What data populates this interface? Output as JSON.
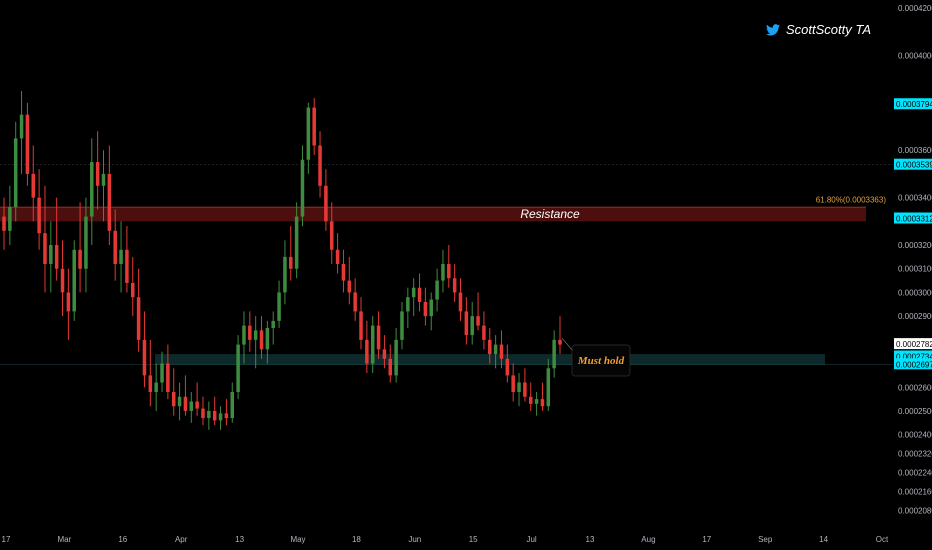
{
  "brand": {
    "name": "ScottScotty TA",
    "icon": "twitter-bird-icon",
    "color": "#1da1f2"
  },
  "colors": {
    "up": "#26a69a",
    "down": "#ef5350",
    "upBody": "#3d8c40",
    "downBody": "#e53935",
    "resistance": "#7a1a1a",
    "support": "#0d2a2a"
  },
  "chart_data": {
    "type": "candlestick",
    "title": "",
    "ylim": [
      0.000204,
      0.00042
    ],
    "y_ticks": [
      "0.0004200",
      "0.0004000",
      "0.0003600",
      "0.0003400",
      "0.0003200",
      "0.0003100",
      "0.0003000",
      "0.0002900",
      "0.0002600",
      "0.0002500",
      "0.0002400",
      "0.0002320",
      "0.0002240",
      "0.0002160",
      "0.0002080"
    ],
    "x_ticks": [
      "17",
      "Mar",
      "16",
      "Apr",
      "13",
      "May",
      "18",
      "Jun",
      "15",
      "Jul",
      "13",
      "Aug",
      "17",
      "Sep",
      "14",
      "Oct"
    ],
    "price_labels": [
      {
        "value": "0.0003794",
        "style": "cyan"
      },
      {
        "value": "0.0003539",
        "style": "cyan"
      },
      {
        "value": "0.0003312",
        "style": "cyan"
      },
      {
        "value": "0.0002782",
        "style": "white"
      },
      {
        "value": "0.0002734",
        "style": "cyan"
      },
      {
        "value": "0.0002697",
        "style": "cyan"
      }
    ],
    "fib_label": "61.80%(0.0003363)",
    "annotations": {
      "resistance": "Resistance",
      "support": "Must hold"
    },
    "resistance_zone": [
      0.00033,
      0.000336
    ],
    "support_zone": [
      0.0002695,
      0.000274
    ],
    "candles": [
      [
        0.000332,
        0.00034,
        0.000318,
        0.000326
      ],
      [
        0.000326,
        0.000345,
        0.00032,
        0.000336
      ],
      [
        0.000336,
        0.000372,
        0.00033,
        0.000365
      ],
      [
        0.000365,
        0.000385,
        0.00035,
        0.000375
      ],
      [
        0.000375,
        0.00038,
        0.000345,
        0.00035
      ],
      [
        0.00035,
        0.000362,
        0.00033,
        0.00034
      ],
      [
        0.00034,
        0.000352,
        0.000318,
        0.000325
      ],
      [
        0.000325,
        0.000345,
        0.0003,
        0.000312
      ],
      [
        0.000312,
        0.00033,
        0.0003,
        0.00032
      ],
      [
        0.00032,
        0.00034,
        0.000305,
        0.00031
      ],
      [
        0.00031,
        0.000322,
        0.00029,
        0.0003
      ],
      [
        0.0003,
        0.00031,
        0.00028,
        0.000292
      ],
      [
        0.000292,
        0.000322,
        0.000288,
        0.000318
      ],
      [
        0.000318,
        0.000338,
        0.0003,
        0.00031
      ],
      [
        0.00031,
        0.00034,
        0.0003,
        0.000332
      ],
      [
        0.000332,
        0.000365,
        0.00032,
        0.000355
      ],
      [
        0.000355,
        0.000368,
        0.000335,
        0.000345
      ],
      [
        0.000345,
        0.00036,
        0.00033,
        0.00035
      ],
      [
        0.00035,
        0.000362,
        0.00032,
        0.000326
      ],
      [
        0.000326,
        0.000335,
        0.000305,
        0.000312
      ],
      [
        0.000312,
        0.00033,
        0.0003,
        0.000318
      ],
      [
        0.000318,
        0.000328,
        0.0003,
        0.000304
      ],
      [
        0.000304,
        0.000315,
        0.00029,
        0.000298
      ],
      [
        0.000298,
        0.00031,
        0.000275,
        0.00028
      ],
      [
        0.00028,
        0.000292,
        0.00026,
        0.000265
      ],
      [
        0.000265,
        0.00028,
        0.000252,
        0.000258
      ],
      [
        0.000258,
        0.00027,
        0.00025,
        0.000262
      ],
      [
        0.000262,
        0.000275,
        0.000258,
        0.00027
      ],
      [
        0.00027,
        0.000278,
        0.000255,
        0.000258
      ],
      [
        0.000258,
        0.000268,
        0.000248,
        0.000252
      ],
      [
        0.000252,
        0.000262,
        0.000246,
        0.000256
      ],
      [
        0.000256,
        0.000265,
        0.000248,
        0.00025
      ],
      [
        0.00025,
        0.000258,
        0.000245,
        0.000254
      ],
      [
        0.000254,
        0.000262,
        0.000248,
        0.000251
      ],
      [
        0.000251,
        0.000256,
        0.000244,
        0.000247
      ],
      [
        0.000247,
        0.000254,
        0.000242,
        0.00025
      ],
      [
        0.00025,
        0.000256,
        0.000244,
        0.000246
      ],
      [
        0.000246,
        0.000252,
        0.000242,
        0.000249
      ],
      [
        0.000249,
        0.000255,
        0.000244,
        0.000247
      ],
      [
        0.000247,
        0.000262,
        0.000245,
        0.000258
      ],
      [
        0.000258,
        0.000282,
        0.000255,
        0.000278
      ],
      [
        0.000278,
        0.000292,
        0.00027,
        0.000286
      ],
      [
        0.000286,
        0.000292,
        0.000275,
        0.00028
      ],
      [
        0.00028,
        0.00029,
        0.000268,
        0.000284
      ],
      [
        0.000284,
        0.00029,
        0.000272,
        0.000276
      ],
      [
        0.000276,
        0.000288,
        0.00027,
        0.000285
      ],
      [
        0.000285,
        0.000292,
        0.000278,
        0.000288
      ],
      [
        0.000288,
        0.000305,
        0.000285,
        0.0003
      ],
      [
        0.0003,
        0.000322,
        0.000295,
        0.000315
      ],
      [
        0.000315,
        0.000328,
        0.000305,
        0.00031
      ],
      [
        0.00031,
        0.000338,
        0.000306,
        0.000332
      ],
      [
        0.000332,
        0.000362,
        0.000328,
        0.000356
      ],
      [
        0.000356,
        0.00038,
        0.00035,
        0.000378
      ],
      [
        0.000378,
        0.000382,
        0.000358,
        0.000362
      ],
      [
        0.000362,
        0.000368,
        0.00034,
        0.000345
      ],
      [
        0.000345,
        0.000352,
        0.000326,
        0.00033
      ],
      [
        0.00033,
        0.000338,
        0.000312,
        0.000318
      ],
      [
        0.000318,
        0.000325,
        0.000308,
        0.000312
      ],
      [
        0.000312,
        0.000318,
        0.0003,
        0.000305
      ],
      [
        0.000305,
        0.000315,
        0.000295,
        0.0003
      ],
      [
        0.0003,
        0.000306,
        0.000288,
        0.000292
      ],
      [
        0.000292,
        0.000298,
        0.000276,
        0.00028
      ],
      [
        0.00028,
        0.000288,
        0.000266,
        0.00027
      ],
      [
        0.00027,
        0.00029,
        0.000266,
        0.000286
      ],
      [
        0.000286,
        0.000292,
        0.000272,
        0.000276
      ],
      [
        0.000276,
        0.000282,
        0.000268,
        0.000272
      ],
      [
        0.000272,
        0.000278,
        0.000262,
        0.000265
      ],
      [
        0.000265,
        0.000285,
        0.000262,
        0.00028
      ],
      [
        0.00028,
        0.000296,
        0.000276,
        0.000292
      ],
      [
        0.000292,
        0.000302,
        0.000285,
        0.000298
      ],
      [
        0.000298,
        0.000306,
        0.00029,
        0.000302
      ],
      [
        0.000302,
        0.000308,
        0.000292,
        0.000296
      ],
      [
        0.000296,
        0.000302,
        0.000286,
        0.00029
      ],
      [
        0.00029,
        0.0003,
        0.000284,
        0.000297
      ],
      [
        0.000297,
        0.00031,
        0.000292,
        0.000305
      ],
      [
        0.000305,
        0.000318,
        0.0003,
        0.000312
      ],
      [
        0.000312,
        0.00032,
        0.000302,
        0.000306
      ],
      [
        0.000306,
        0.000312,
        0.000296,
        0.0003
      ],
      [
        0.0003,
        0.000306,
        0.000288,
        0.000292
      ],
      [
        0.000292,
        0.000298,
        0.000278,
        0.000282
      ],
      [
        0.000282,
        0.000296,
        0.000278,
        0.00029
      ],
      [
        0.00029,
        0.0003,
        0.000284,
        0.000286
      ],
      [
        0.000286,
        0.000292,
        0.000276,
        0.00028
      ],
      [
        0.00028,
        0.000285,
        0.00027,
        0.000274
      ],
      [
        0.000274,
        0.000282,
        0.000268,
        0.000278
      ],
      [
        0.000278,
        0.000284,
        0.000268,
        0.000272
      ],
      [
        0.000272,
        0.000278,
        0.000262,
        0.000265
      ],
      [
        0.000265,
        0.00027,
        0.000254,
        0.000258
      ],
      [
        0.000258,
        0.000266,
        0.000252,
        0.000262
      ],
      [
        0.000262,
        0.000268,
        0.000254,
        0.000256
      ],
      [
        0.000256,
        0.000262,
        0.00025,
        0.000253
      ],
      [
        0.000253,
        0.000258,
        0.000248,
        0.000255
      ],
      [
        0.000255,
        0.000262,
        0.00025,
        0.000252
      ],
      [
        0.000252,
        0.000272,
        0.00025,
        0.000268
      ],
      [
        0.000268,
        0.000284,
        0.000264,
        0.00028
      ],
      [
        0.00028,
        0.00029,
        0.000274,
        0.000278
      ]
    ]
  }
}
